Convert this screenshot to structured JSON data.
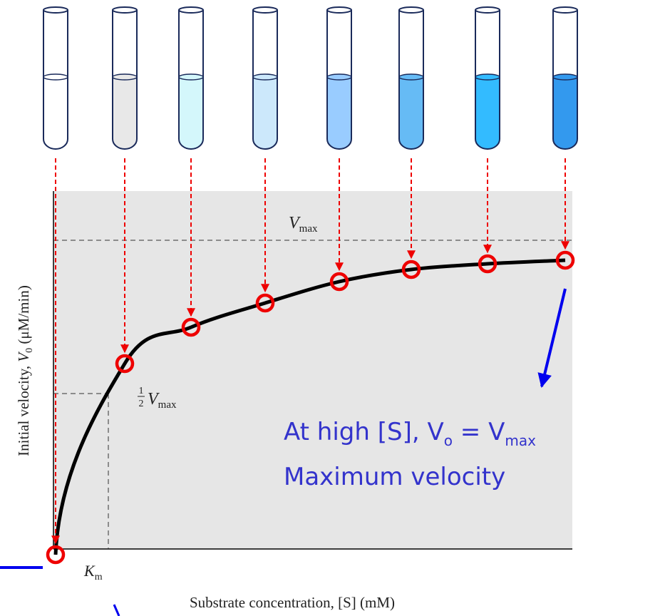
{
  "labels": {
    "vmax": {
      "symbol": "V",
      "sub": "max"
    },
    "half_vmax": {
      "numerator": "1",
      "denominator": "2",
      "symbol": "V",
      "sub": "max"
    },
    "km": {
      "symbol": "K",
      "sub": "m"
    },
    "y_axis": {
      "before": "Initial velocity, ",
      "symbol": "V",
      "sub": "0",
      "after": " (μM/min)"
    },
    "x_axis": "Substrate concentration, [S] (mM)"
  },
  "annotation": {
    "line1": {
      "before": "At high [S], V",
      "sub1": "o",
      "middle": " = V",
      "sub2": "max"
    },
    "line2": "Maximum velocity"
  }
}
